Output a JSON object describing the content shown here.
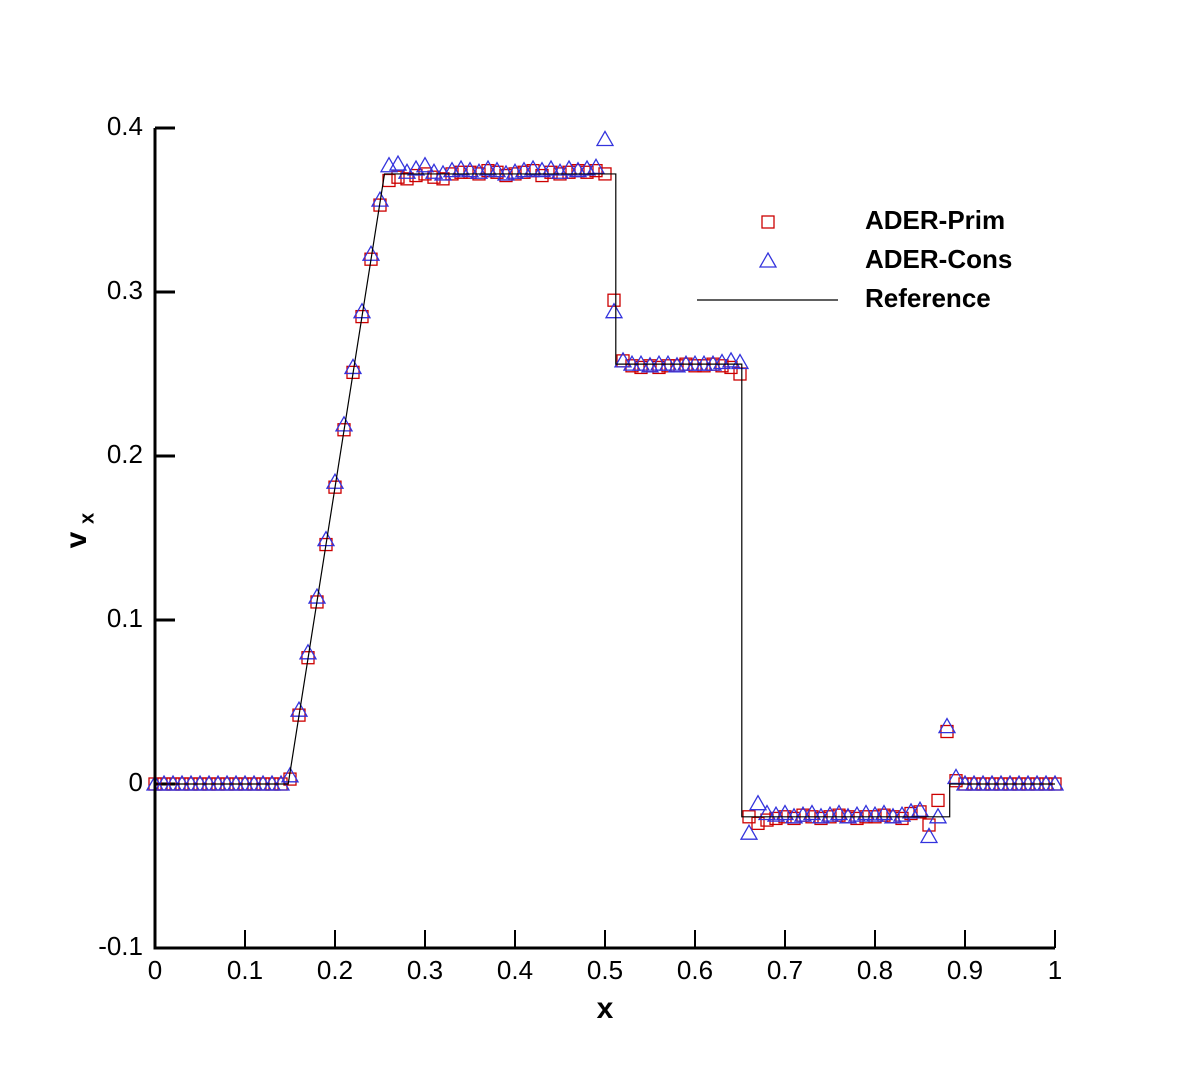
{
  "chart_data": {
    "type": "scatter",
    "xlabel": "x",
    "ylabel": "v",
    "ylabel_subscript": "x",
    "xlim": [
      0,
      1
    ],
    "ylim": [
      -0.1,
      0.4
    ],
    "xticks": [
      0,
      0.1,
      0.2,
      0.3,
      0.4,
      0.5,
      0.6,
      0.7,
      0.8,
      0.9,
      1
    ],
    "yticks": [
      -0.1,
      0,
      0.1,
      0.2,
      0.3,
      0.4
    ],
    "legend": "upper right",
    "x": [
      0,
      0.01,
      0.02,
      0.03,
      0.04,
      0.05,
      0.06,
      0.07,
      0.08,
      0.09,
      0.1,
      0.11,
      0.12,
      0.13,
      0.14,
      0.15,
      0.16,
      0.17,
      0.18,
      0.19,
      0.2,
      0.21,
      0.22,
      0.23,
      0.24,
      0.25,
      0.26,
      0.27,
      0.28,
      0.29,
      0.3,
      0.31,
      0.32,
      0.33,
      0.34,
      0.35,
      0.36,
      0.37,
      0.38,
      0.39,
      0.4,
      0.41,
      0.42,
      0.43,
      0.44,
      0.45,
      0.46,
      0.47,
      0.48,
      0.49,
      0.5,
      0.51,
      0.52,
      0.53,
      0.54,
      0.55,
      0.56,
      0.57,
      0.58,
      0.59,
      0.6,
      0.61,
      0.62,
      0.63,
      0.64,
      0.65,
      0.66,
      0.67,
      0.68,
      0.69,
      0.7,
      0.71,
      0.72,
      0.73,
      0.74,
      0.75,
      0.76,
      0.77,
      0.78,
      0.79,
      0.8,
      0.81,
      0.82,
      0.83,
      0.84,
      0.85,
      0.86,
      0.87,
      0.88,
      0.89,
      0.9,
      0.91,
      0.92,
      0.93,
      0.94,
      0.95,
      0.96,
      0.97,
      0.98,
      0.99,
      1
    ],
    "series": [
      {
        "name": "ADER-Prim",
        "marker": "square",
        "color": "#cc0000",
        "values": [
          0,
          0,
          0,
          0,
          0,
          0,
          0,
          0,
          0,
          0,
          0,
          0,
          0,
          0,
          0,
          0.003,
          0.042,
          0.077,
          0.111,
          0.146,
          0.181,
          0.216,
          0.251,
          0.285,
          0.32,
          0.353,
          0.368,
          0.37,
          0.369,
          0.371,
          0.372,
          0.37,
          0.369,
          0.372,
          0.373,
          0.373,
          0.372,
          0.374,
          0.373,
          0.371,
          0.372,
          0.373,
          0.374,
          0.371,
          0.373,
          0.372,
          0.373,
          0.374,
          0.373,
          0.374,
          0.372,
          0.295,
          0.258,
          0.255,
          0.254,
          0.255,
          0.254,
          0.255,
          0.255,
          0.256,
          0.255,
          0.255,
          0.256,
          0.255,
          0.254,
          0.25,
          -0.02,
          -0.024,
          -0.022,
          -0.021,
          -0.02,
          -0.021,
          -0.019,
          -0.02,
          -0.021,
          -0.02,
          -0.019,
          -0.02,
          -0.021,
          -0.02,
          -0.02,
          -0.019,
          -0.02,
          -0.021,
          -0.018,
          -0.017,
          -0.025,
          -0.01,
          0.032,
          0.002,
          0,
          0,
          0,
          0,
          0,
          0,
          0,
          0,
          0,
          0,
          0
        ]
      },
      {
        "name": "ADER-Cons",
        "marker": "triangle",
        "color": "#3333dd",
        "values": [
          0,
          0,
          0,
          0,
          0,
          0,
          0,
          0,
          0,
          0,
          0,
          0,
          0,
          0,
          0,
          0.005,
          0.045,
          0.08,
          0.114,
          0.149,
          0.184,
          0.219,
          0.254,
          0.288,
          0.323,
          0.356,
          0.377,
          0.378,
          0.373,
          0.375,
          0.377,
          0.373,
          0.372,
          0.374,
          0.375,
          0.374,
          0.373,
          0.375,
          0.374,
          0.372,
          0.373,
          0.374,
          0.375,
          0.374,
          0.375,
          0.373,
          0.375,
          0.374,
          0.375,
          0.376,
          0.393,
          0.288,
          0.258,
          0.256,
          0.256,
          0.255,
          0.256,
          0.256,
          0.255,
          0.256,
          0.256,
          0.256,
          0.256,
          0.257,
          0.258,
          0.257,
          -0.03,
          -0.012,
          -0.018,
          -0.019,
          -0.018,
          -0.02,
          -0.019,
          -0.018,
          -0.02,
          -0.019,
          -0.018,
          -0.02,
          -0.019,
          -0.018,
          -0.019,
          -0.018,
          -0.02,
          -0.019,
          -0.017,
          -0.016,
          -0.032,
          -0.02,
          0.035,
          0.004,
          0,
          0,
          0,
          0,
          0,
          0,
          0,
          0,
          0,
          0,
          0
        ]
      },
      {
        "name": "Reference",
        "marker": "line",
        "color": "#000000",
        "x": [
          0,
          0.148,
          0.255,
          0.512,
          0.512,
          0.652,
          0.652,
          0.883,
          0.883,
          1
        ],
        "values": [
          0,
          0,
          0.372,
          0.372,
          0.256,
          0.256,
          -0.02,
          -0.02,
          0,
          0
        ]
      }
    ]
  }
}
